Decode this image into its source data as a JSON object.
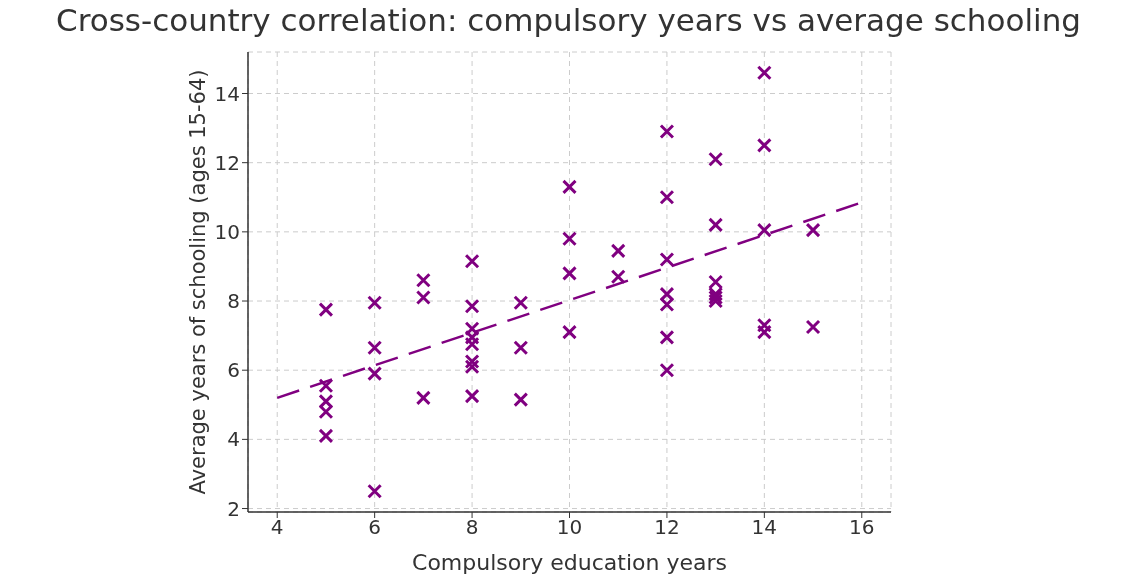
{
  "chart_data": {
    "type": "scatter",
    "title": "Cross-country correlation: compulsory years vs average schooling",
    "xlabel": "Compulsory education years",
    "ylabel": "Average years of schooling (ages 15-64)",
    "xlim": [
      3.4,
      16.6
    ],
    "xticks": [
      4,
      6,
      8,
      10,
      12,
      14,
      16
    ],
    "ylim": [
      1.9,
      15.2
    ],
    "yticks": [
      2,
      4,
      6,
      8,
      10,
      12,
      14
    ],
    "grid": true,
    "marker": "cross",
    "series": [
      {
        "color": "#800080",
        "x": [
          5,
          5,
          5,
          5,
          5,
          6,
          6,
          6,
          6,
          7,
          7,
          7,
          8,
          8,
          8,
          8,
          8,
          8,
          8,
          8,
          9,
          9,
          9,
          10,
          10,
          10,
          10,
          11,
          11,
          12,
          12,
          12,
          12,
          12,
          12,
          12,
          13,
          13,
          13,
          13,
          13,
          13,
          14,
          14,
          14,
          14,
          14,
          15,
          15
        ],
        "values": [
          7.75,
          5.55,
          5.1,
          4.8,
          4.1,
          7.95,
          6.65,
          5.9,
          2.5,
          8.6,
          8.1,
          5.2,
          9.15,
          7.85,
          7.2,
          6.95,
          6.75,
          6.25,
          6.1,
          5.25,
          7.95,
          6.65,
          5.15,
          11.3,
          9.8,
          8.8,
          7.1,
          9.45,
          8.7,
          12.9,
          11.0,
          9.2,
          8.2,
          7.9,
          6.95,
          6.0,
          12.1,
          10.2,
          8.55,
          8.2,
          8.1,
          8.0,
          14.6,
          12.5,
          10.05,
          7.3,
          7.1,
          10.05,
          7.25
        ]
      },
      {
        "type": "line",
        "color": "#800080",
        "line_style": "dashed",
        "marker": "none",
        "x": [
          4,
          16
        ],
        "values": [
          5.2,
          10.85
        ]
      }
    ]
  }
}
